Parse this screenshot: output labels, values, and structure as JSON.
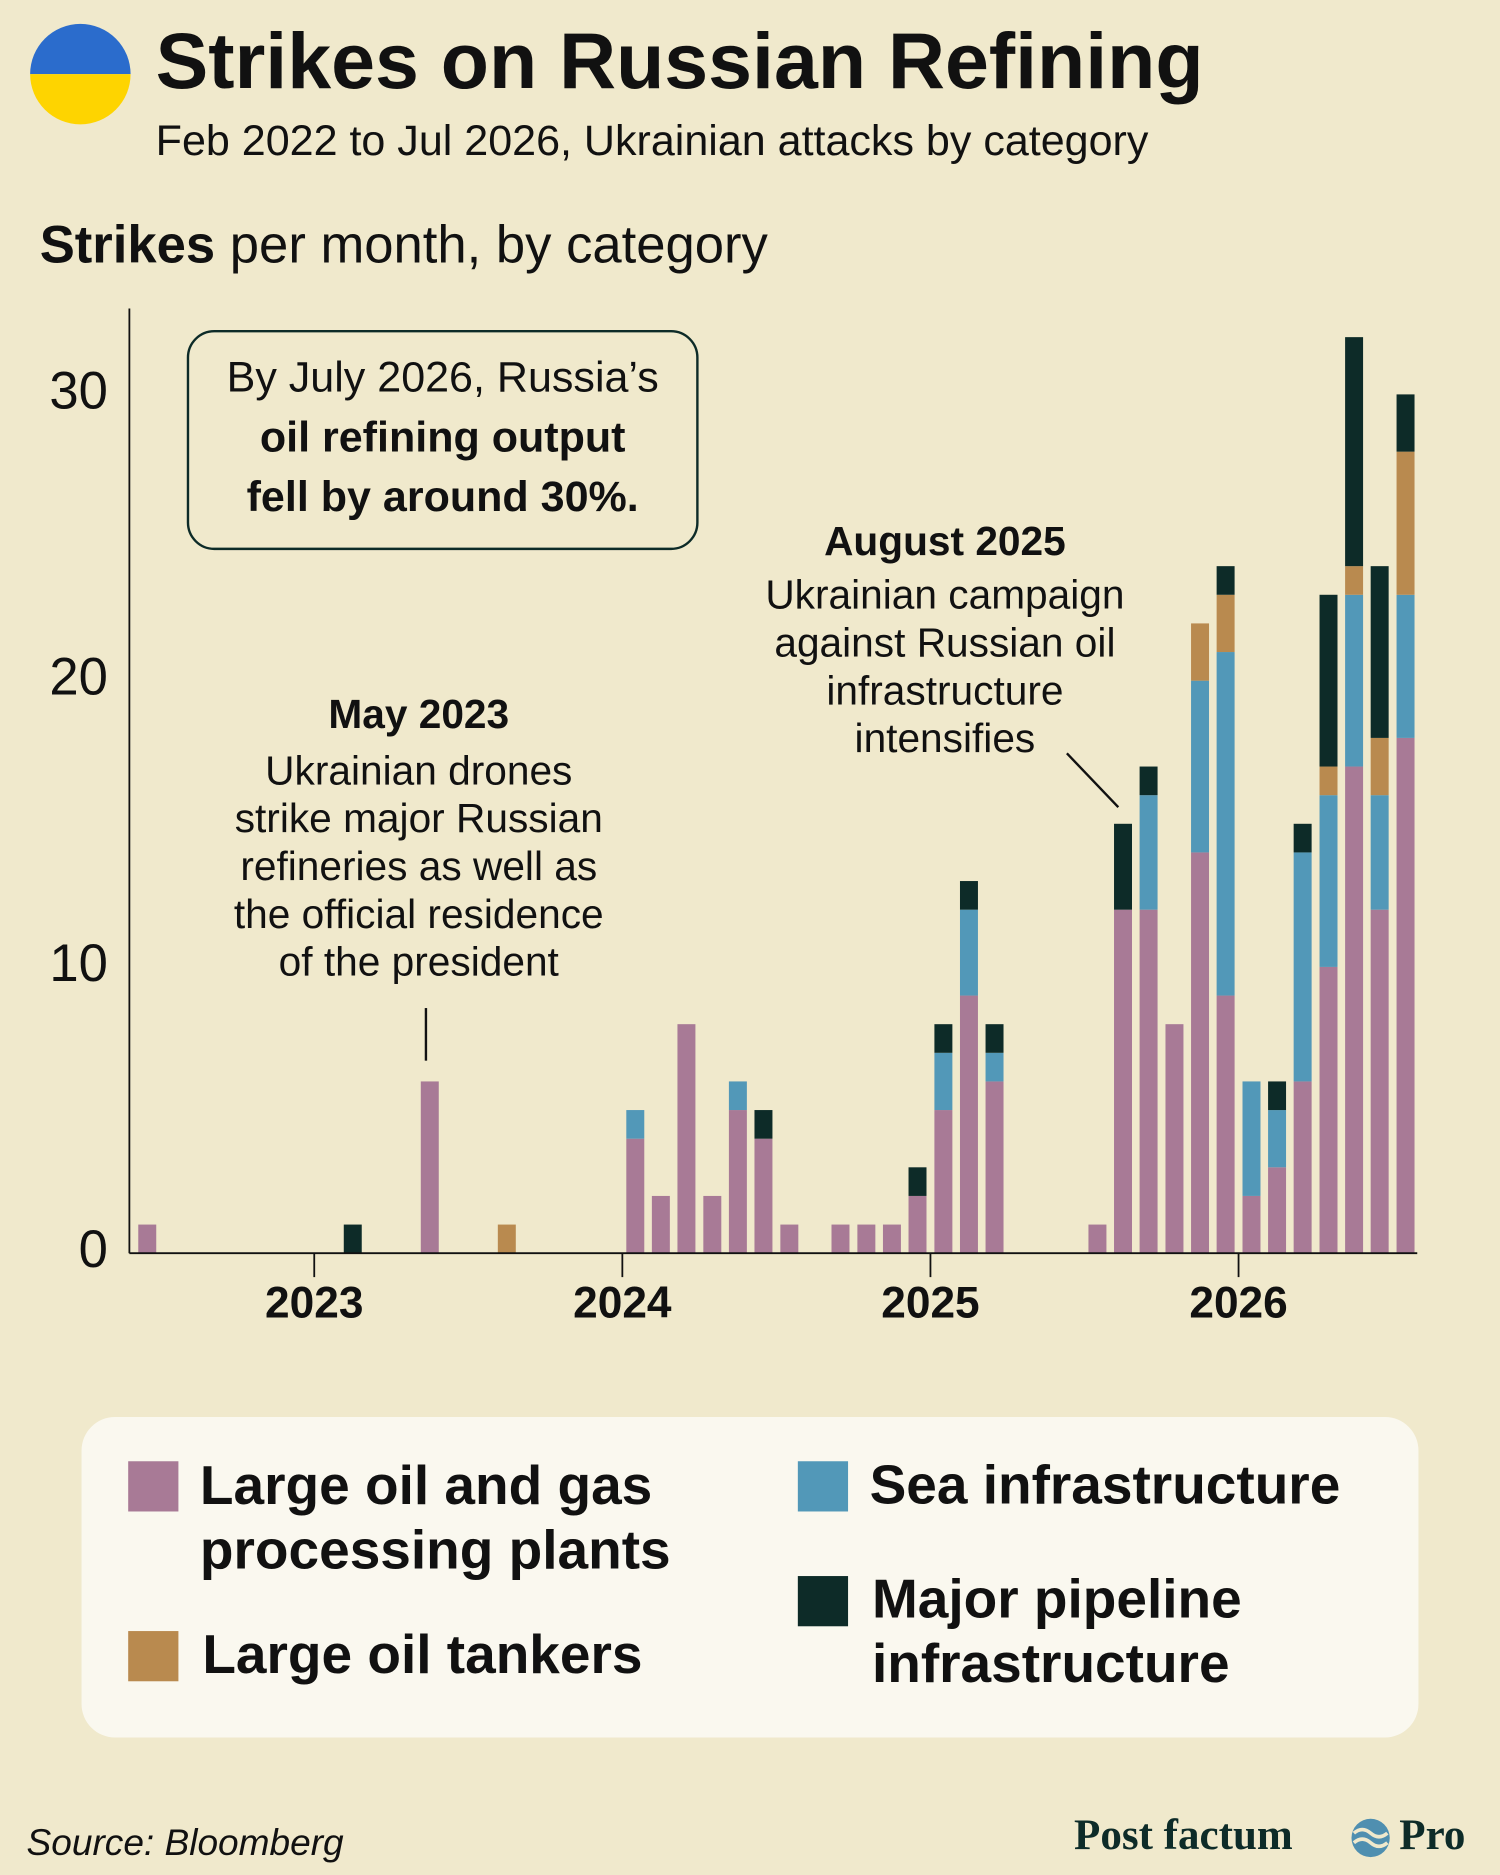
{
  "chart_data": {
    "type": "stacked_bar",
    "title": "Strikes on Russian Refining",
    "subtitle": "Feb 2022 to Jul 2026, Ukrainian attacks by category",
    "y_label_bold": "Strikes",
    "y_label": "per month, by category",
    "callout": [
      "By July 2026, Russia’s",
      "oil refining output",
      "fell by around 30%."
    ],
    "annotations": [
      {
        "title": "May 2023",
        "lines": [
          "Ukrainian drones",
          "strike major Russian",
          "refineries as well as",
          "the official residence",
          "of the president"
        ]
      },
      {
        "title": "August 2025",
        "lines": [
          "Ukrainian campaign",
          "against Russian oil",
          "infrastructure",
          "intensifies"
        ]
      }
    ],
    "x": [
      2022.458,
      2023.125,
      2023.375,
      2023.625,
      2024.042,
      2024.125,
      2024.208,
      2024.292,
      2024.375,
      2024.458,
      2024.542,
      2024.708,
      2024.792,
      2024.875,
      2024.958,
      2025.042,
      2025.125,
      2025.208,
      2025.542,
      2025.625,
      2025.708,
      2025.792,
      2025.875,
      2025.958,
      2026.042,
      2026.125,
      2026.208,
      2026.292,
      2026.375,
      2026.458,
      2026.542
    ],
    "series": [
      {
        "name": "Large oil and gas processing plants",
        "color": "#a87a96",
        "values": [
          1,
          0,
          6,
          0,
          4,
          2,
          8,
          2,
          5,
          4,
          1,
          1,
          1,
          1,
          2,
          5,
          9,
          6,
          1,
          12,
          12,
          8,
          14,
          9,
          2,
          3,
          6,
          10,
          17,
          12,
          18
        ]
      },
      {
        "name": "Sea infrastructure",
        "color": "#5298b8",
        "values": [
          0,
          0,
          0,
          0,
          1,
          0,
          0,
          0,
          1,
          0,
          0,
          0,
          0,
          0,
          0,
          2,
          3,
          1,
          0,
          0,
          4,
          0,
          6,
          12,
          4,
          2,
          8,
          6,
          6,
          4,
          5
        ]
      },
      {
        "name": "Large oil tankers",
        "color": "#b98a4f",
        "values": [
          0,
          0,
          0,
          1,
          0,
          0,
          0,
          0,
          0,
          0,
          0,
          0,
          0,
          0,
          0,
          0,
          0,
          0,
          0,
          0,
          0,
          0,
          2,
          2,
          0,
          0,
          0,
          1,
          1,
          2,
          5
        ]
      },
      {
        "name": "Major pipeline infrastructure",
        "color": "#0d2b28",
        "values": [
          0,
          1,
          0,
          0,
          0,
          0,
          0,
          0,
          0,
          1,
          0,
          0,
          0,
          0,
          1,
          1,
          1,
          1,
          0,
          3,
          1,
          0,
          0,
          1,
          0,
          1,
          1,
          6,
          8,
          6,
          2
        ]
      }
    ],
    "xlim": [
      2022.4,
      2026.58
    ],
    "xticks": [
      2023,
      2024,
      2025,
      2026
    ],
    "ylim": [
      0,
      33
    ],
    "yticks": [
      0,
      10,
      20,
      30
    ],
    "source": "Source: Bloomberg",
    "brand": "Post factum",
    "brand_suffix": "Pro"
  }
}
